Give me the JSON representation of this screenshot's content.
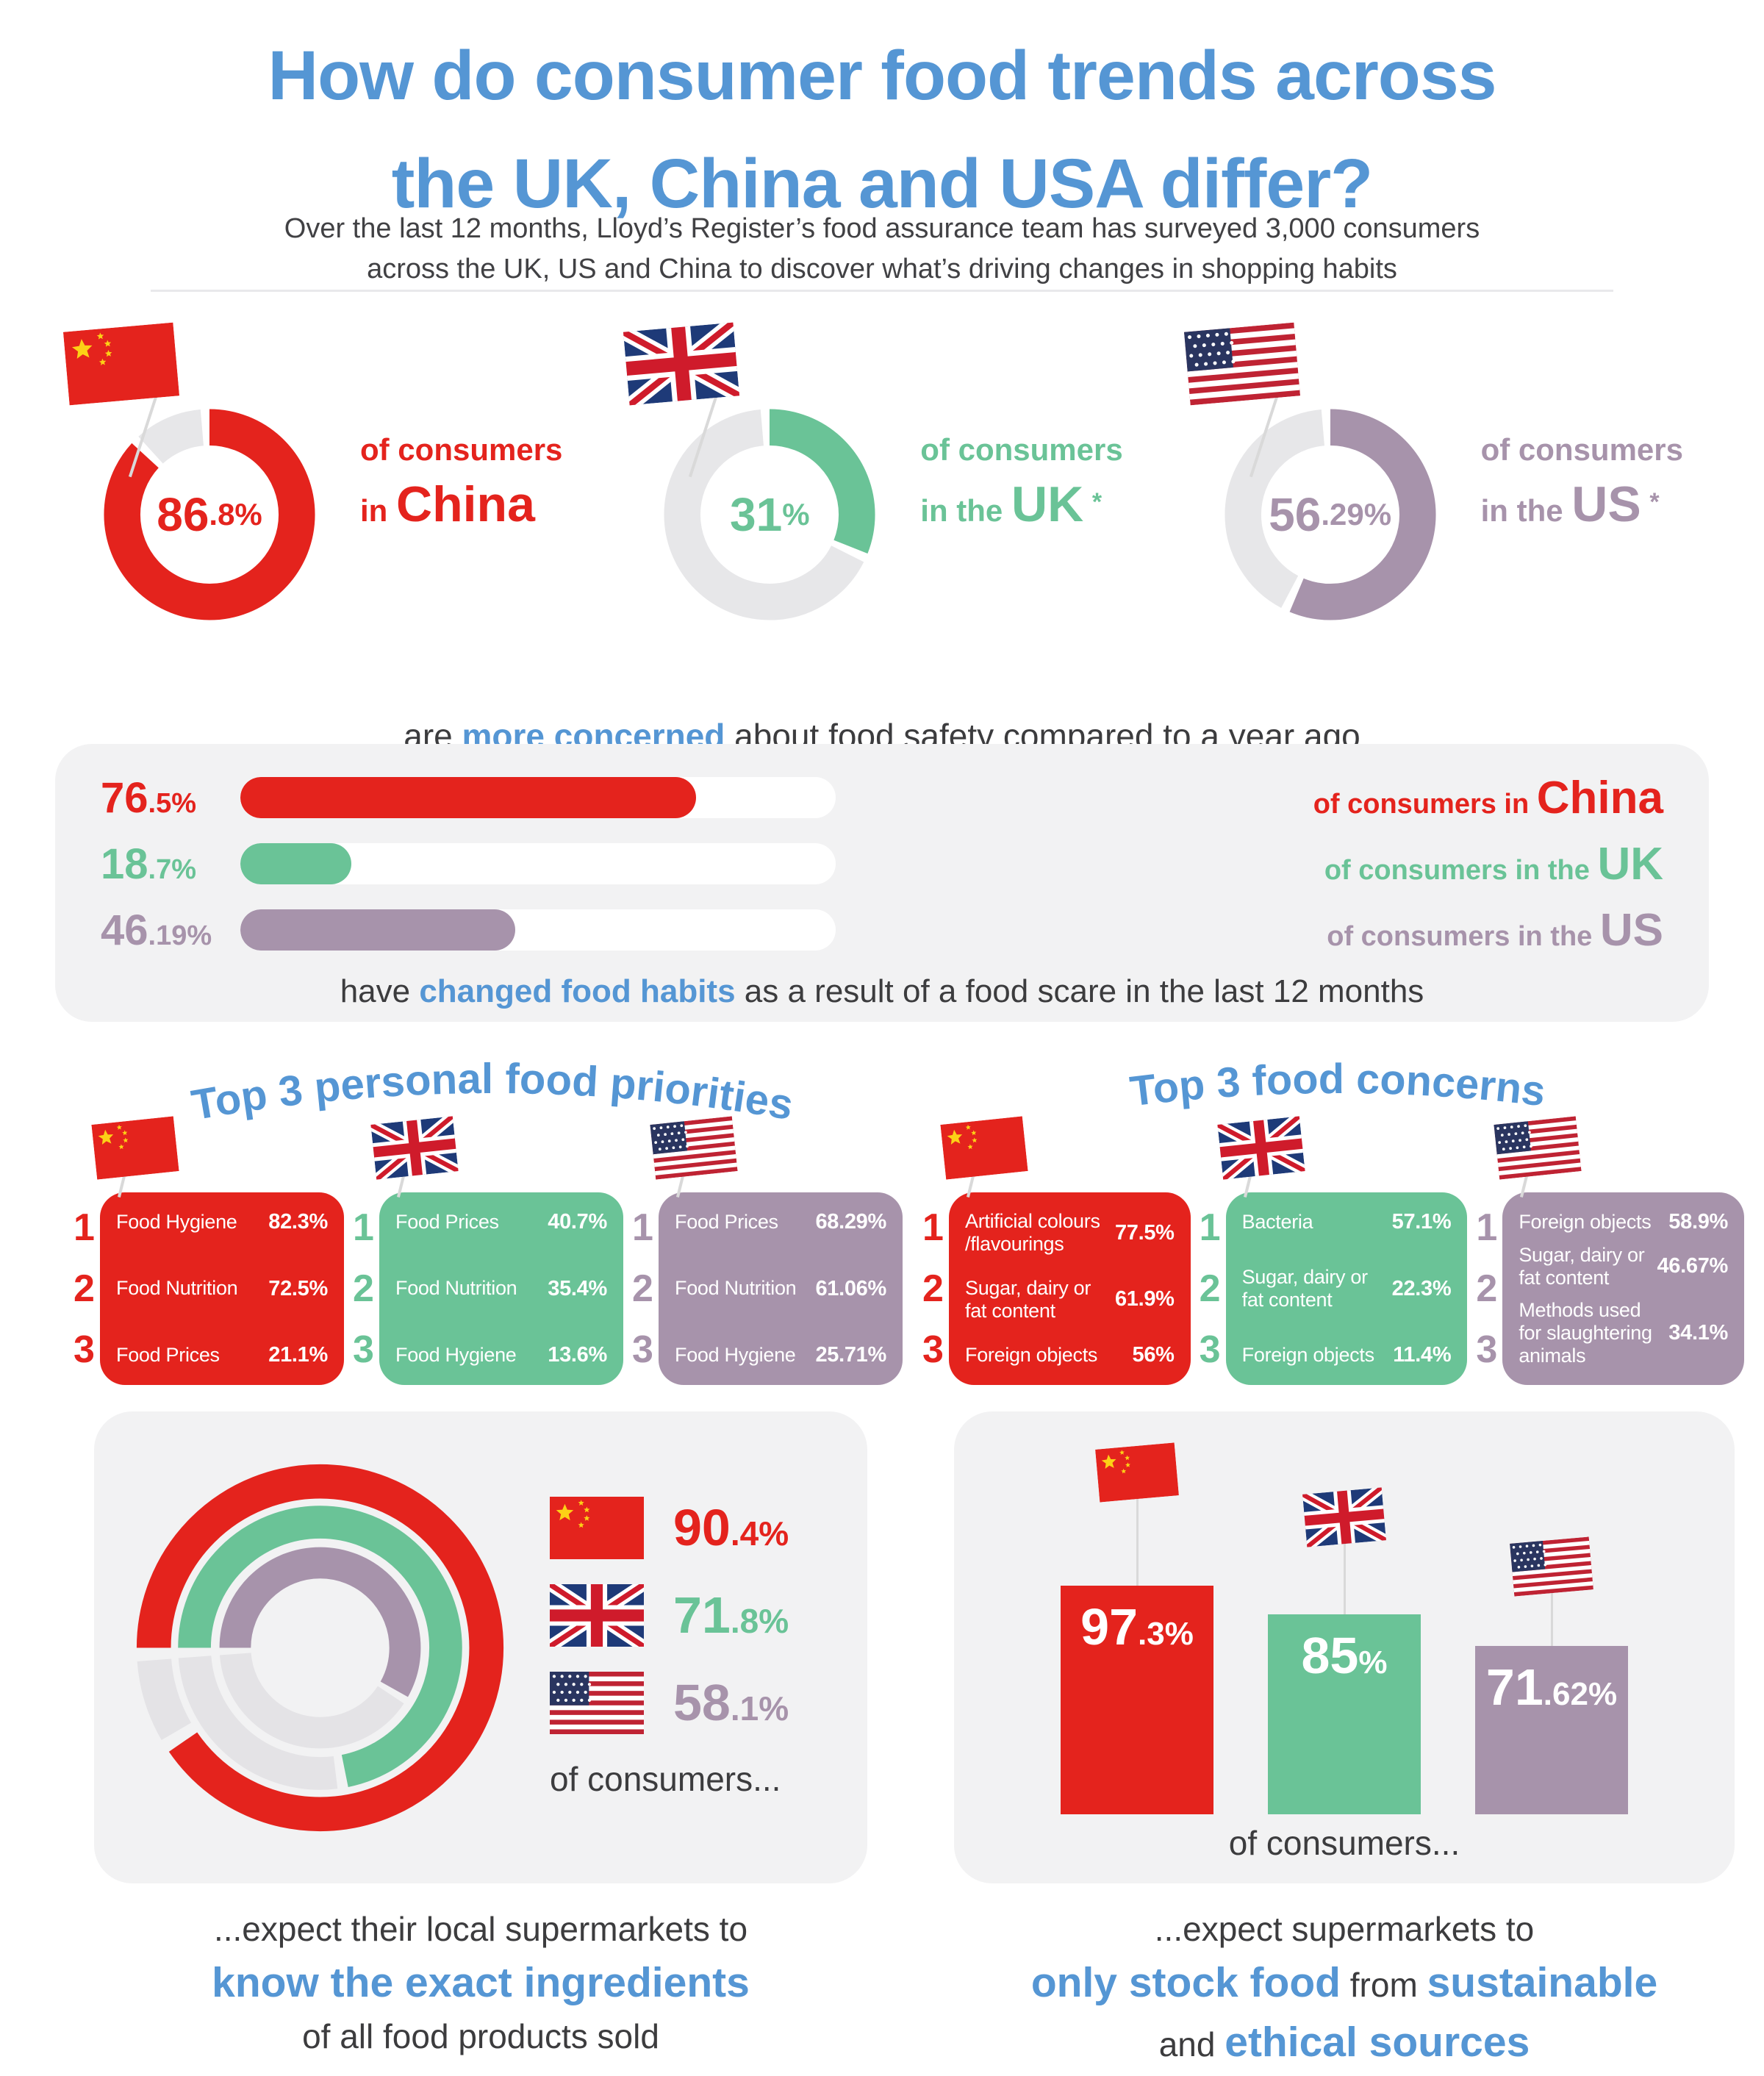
{
  "theme": {
    "accent_blue": "#5596d4",
    "china_red": "#e4231d",
    "uk_green": "#6ac397",
    "us_purple": "#a793ab",
    "donut_track_gray": "#e7e7e9",
    "card_gray": "#f2f2f3",
    "dark_text": "#3c3c3e"
  },
  "header": {
    "title_line1": "How do consumer food trends across",
    "title_line2": "the UK, China and USA differ?",
    "subtitle_line1": "Over the last 12 months, Lloyd’s Register’s food assurance team has surveyed 3,000 consumers",
    "subtitle_line2": "across the UK, US and China to discover what’s driving changes in shopping habits"
  },
  "donuts": [
    {
      "country": "China",
      "flag_icon": "china-flag-icon",
      "pct": 86.8,
      "value_int": "86",
      "value_frac": ".8%",
      "color": "#e4231d",
      "label_line1": "of consumers",
      "label_prefix": "in ",
      "label_country": "China",
      "asterisk": ""
    },
    {
      "country": "UK",
      "flag_icon": "uk-flag-icon",
      "pct": 31,
      "value_int": "31",
      "value_frac": "%",
      "color": "#6ac397",
      "label_line1": "of consumers",
      "label_prefix": "in the ",
      "label_country": "UK",
      "asterisk": "*"
    },
    {
      "country": "US",
      "flag_icon": "us-flag-icon",
      "pct": 56.29,
      "value_int": "56",
      "value_frac": ".29%",
      "color": "#a793ab",
      "label_line1": "of consumers",
      "label_prefix": "in the ",
      "label_country": "US",
      "asterisk": "*"
    }
  ],
  "caption_concerned": [
    {
      "t": "are "
    },
    {
      "t": "more concerned",
      "hl": true
    },
    {
      "t": " about food safety compared to a year ago"
    }
  ],
  "bars_box": {
    "rows": [
      {
        "country": "China",
        "pct": 76.5,
        "value_int": "76",
        "value_frac": ".5%",
        "color": "#e4231d",
        "label_prefix": "of consumers in ",
        "label_country": "China"
      },
      {
        "country": "UK",
        "pct": 18.7,
        "value_int": "18",
        "value_frac": ".7%",
        "color": "#6ac397",
        "label_prefix": "of consumers in the ",
        "label_country": "UK"
      },
      {
        "country": "US",
        "pct": 46.19,
        "value_int": "46",
        "value_frac": ".19%",
        "color": "#a793ab",
        "label_prefix": "of consumers in the ",
        "label_country": "US"
      }
    ],
    "caption": [
      {
        "t": "have "
      },
      {
        "t": "changed food habits",
        "hl": true
      },
      {
        "t": " as a result of a food scare in the last 12 months"
      }
    ]
  },
  "priorities": {
    "title": "Top 3 personal food priorities",
    "cards": [
      {
        "country": "China",
        "flag_icon": "china-flag-icon",
        "color": "#e4231d",
        "rows": [
          {
            "rank": "1",
            "label": "Food Hygiene",
            "value": "82.3%"
          },
          {
            "rank": "2",
            "label": "Food Nutrition",
            "value": "72.5%"
          },
          {
            "rank": "3",
            "label": "Food Prices",
            "value": "21.1%"
          }
        ]
      },
      {
        "country": "UK",
        "flag_icon": "uk-flag-icon",
        "color": "#6ac397",
        "rows": [
          {
            "rank": "1",
            "label": "Food Prices",
            "value": "40.7%"
          },
          {
            "rank": "2",
            "label": "Food Nutrition",
            "value": "35.4%"
          },
          {
            "rank": "3",
            "label": "Food Hygiene",
            "value": "13.6%"
          }
        ]
      },
      {
        "country": "US",
        "flag_icon": "us-flag-icon",
        "color": "#a793ab",
        "rows": [
          {
            "rank": "1",
            "label": "Food Prices",
            "value": "68.29%"
          },
          {
            "rank": "2",
            "label": "Food Nutrition",
            "value": "61.06%"
          },
          {
            "rank": "3",
            "label": "Food Hygiene",
            "value": "25.71%"
          }
        ]
      }
    ]
  },
  "concerns": {
    "title": "Top 3 food concerns",
    "cards": [
      {
        "country": "China",
        "flag_icon": "china-flag-icon",
        "color": "#e4231d",
        "rows": [
          {
            "rank": "1",
            "label": "Artificial colours /flavourings",
            "value": "77.5%"
          },
          {
            "rank": "2",
            "label": "Sugar, dairy or fat content",
            "value": "61.9%"
          },
          {
            "rank": "3",
            "label": "Foreign objects",
            "value": "56%"
          }
        ]
      },
      {
        "country": "UK",
        "flag_icon": "uk-flag-icon",
        "color": "#6ac397",
        "rows": [
          {
            "rank": "1",
            "label": "Bacteria",
            "value": "57.1%"
          },
          {
            "rank": "2",
            "label": "Sugar, dairy or fat content",
            "value": "22.3%"
          },
          {
            "rank": "3",
            "label": "Foreign objects",
            "value": "11.4%"
          }
        ]
      },
      {
        "country": "US",
        "flag_icon": "us-flag-icon",
        "color": "#a793ab",
        "rows": [
          {
            "rank": "1",
            "label": "Foreign objects",
            "value": "58.9%"
          },
          {
            "rank": "2",
            "label": "Sugar, dairy or fat content",
            "value": "46.67%"
          },
          {
            "rank": "3",
            "label": "Methods used for slaughtering animals",
            "value": "34.1%"
          }
        ]
      }
    ]
  },
  "rings_card": {
    "rings": [
      {
        "country": "China",
        "pct": 90.4,
        "color": "#e4231d"
      },
      {
        "country": "UK",
        "pct": 71.8,
        "color": "#6ac397"
      },
      {
        "country": "US",
        "pct": 58.1,
        "color": "#a793ab"
      }
    ],
    "legend": [
      {
        "flag_icon": "china-flag-icon",
        "value_int": "90",
        "value_frac": ".4%",
        "color": "#e4231d"
      },
      {
        "flag_icon": "uk-flag-icon",
        "value_int": "71",
        "value_frac": ".8%",
        "color": "#6ac397"
      },
      {
        "flag_icon": "us-flag-icon",
        "value_int": "58",
        "value_frac": ".1%",
        "color": "#a793ab"
      }
    ],
    "caption": "of consumers...",
    "footer": [
      [
        {
          "t": "...expect their local supermarkets to"
        }
      ],
      [
        {
          "t": "know the exact ingredients",
          "hl": true
        }
      ],
      [
        {
          "t": "of all food products sold"
        }
      ]
    ]
  },
  "bars_card": {
    "bars": [
      {
        "country": "China",
        "flag_icon": "china-flag-icon",
        "pct": 97.3,
        "value_int": "97",
        "value_frac": ".3%",
        "color": "#e4231d"
      },
      {
        "country": "UK",
        "flag_icon": "uk-flag-icon",
        "pct": 85,
        "value_int": "85",
        "value_frac": "%",
        "color": "#6ac397"
      },
      {
        "country": "US",
        "flag_icon": "us-flag-icon",
        "pct": 71.62,
        "value_int": "71",
        "value_frac": ".62%",
        "color": "#a793ab"
      }
    ],
    "caption": "of consumers...",
    "footer": [
      [
        {
          "t": "...expect supermarkets to"
        }
      ],
      [
        {
          "t": "only stock food",
          "hl": true
        },
        {
          "t": " from "
        },
        {
          "t": "sustainable",
          "hl": true
        }
      ],
      [
        {
          "t": "and "
        },
        {
          "t": "ethical sources",
          "hl": true
        }
      ]
    ]
  },
  "chart_data": [
    {
      "type": "pie",
      "variant": "donut",
      "title": "are more concerned about food safety compared to a year ago",
      "categories": [
        "China",
        "UK",
        "US"
      ],
      "values": [
        86.8,
        31,
        56.29
      ],
      "unit": "%",
      "colors": [
        "#e4231d",
        "#6ac397",
        "#a793ab"
      ]
    },
    {
      "type": "bar",
      "variant": "horizontal-progress",
      "title": "have changed food habits as a result of a food scare in the last 12 months",
      "categories": [
        "China",
        "UK",
        "US"
      ],
      "values": [
        76.5,
        18.7,
        46.19
      ],
      "xlim": [
        0,
        100
      ],
      "unit": "%",
      "colors": [
        "#e4231d",
        "#6ac397",
        "#a793ab"
      ]
    },
    {
      "type": "table",
      "title": "Top 3 personal food priorities",
      "groups": [
        {
          "country": "China",
          "rows": [
            [
              "Food Hygiene",
              82.3
            ],
            [
              "Food Nutrition",
              72.5
            ],
            [
              "Food Prices",
              21.1
            ]
          ]
        },
        {
          "country": "UK",
          "rows": [
            [
              "Food Prices",
              40.7
            ],
            [
              "Food Nutrition",
              35.4
            ],
            [
              "Food Hygiene",
              13.6
            ]
          ]
        },
        {
          "country": "US",
          "rows": [
            [
              "Food Prices",
              68.29
            ],
            [
              "Food Nutrition",
              61.06
            ],
            [
              "Food Hygiene",
              25.71
            ]
          ]
        }
      ],
      "unit": "%"
    },
    {
      "type": "table",
      "title": "Top 3 food concerns",
      "groups": [
        {
          "country": "China",
          "rows": [
            [
              "Artificial colours /flavourings",
              77.5
            ],
            [
              "Sugar, dairy or fat content",
              61.9
            ],
            [
              "Foreign objects",
              56
            ]
          ]
        },
        {
          "country": "UK",
          "rows": [
            [
              "Bacteria",
              57.1
            ],
            [
              "Sugar, dairy or fat content",
              22.3
            ],
            [
              "Foreign objects",
              11.4
            ]
          ]
        },
        {
          "country": "US",
          "rows": [
            [
              "Foreign objects",
              58.9
            ],
            [
              "Sugar, dairy or fat content",
              46.67
            ],
            [
              "Methods used for slaughtering animals",
              34.1
            ]
          ]
        }
      ],
      "unit": "%"
    },
    {
      "type": "pie",
      "variant": "concentric-rings",
      "title": "expect their local supermarkets to know the exact ingredients of all food products sold",
      "categories": [
        "China",
        "UK",
        "US"
      ],
      "values": [
        90.4,
        71.8,
        58.1
      ],
      "unit": "%",
      "colors": [
        "#e4231d",
        "#6ac397",
        "#a793ab"
      ]
    },
    {
      "type": "bar",
      "variant": "vertical",
      "title": "expect supermarkets to only stock food from sustainable and ethical sources",
      "categories": [
        "China",
        "UK",
        "US"
      ],
      "values": [
        97.3,
        85,
        71.62
      ],
      "ylim": [
        0,
        100
      ],
      "unit": "%",
      "colors": [
        "#e4231d",
        "#6ac397",
        "#a793ab"
      ]
    }
  ]
}
